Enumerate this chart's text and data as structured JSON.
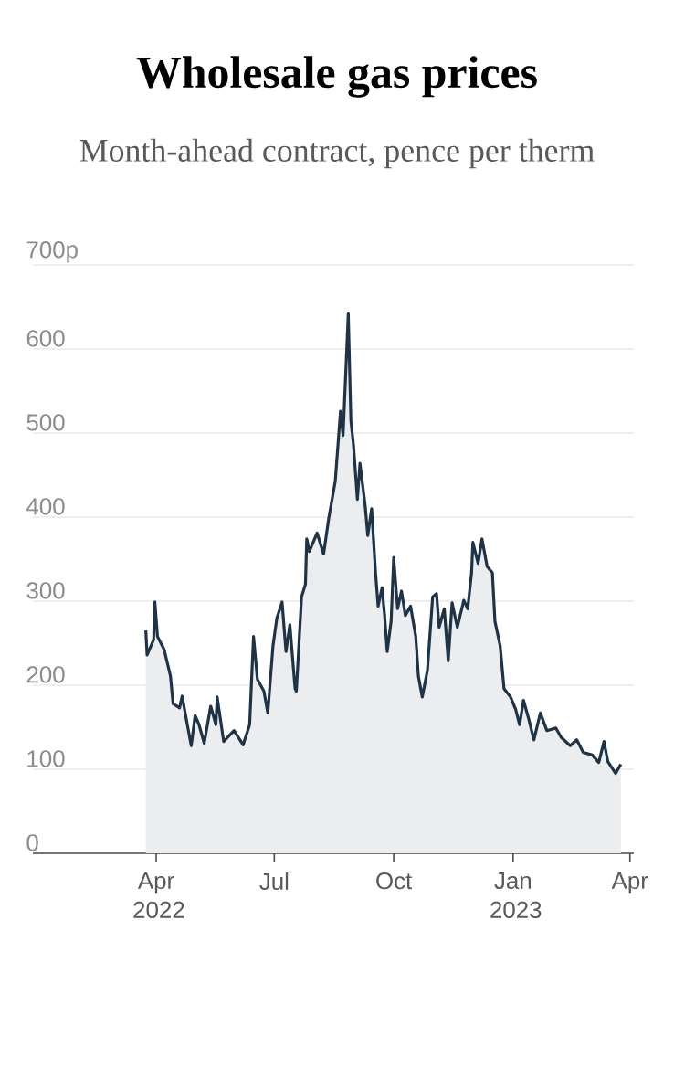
{
  "chart_data": {
    "type": "area",
    "title": "Wholesale gas prices",
    "subtitle": "Month-ahead contract, pence per therm",
    "x": [
      "2022-03-24",
      "2022-03-25",
      "2022-03-30",
      "2022-03-31",
      "2022-04-02",
      "2022-04-07",
      "2022-04-12",
      "2022-04-14",
      "2022-04-19",
      "2022-04-21",
      "2022-04-25",
      "2022-04-28",
      "2022-05-01",
      "2022-05-04",
      "2022-05-08",
      "2022-05-13",
      "2022-05-17",
      "2022-05-18",
      "2022-05-23",
      "2022-05-31",
      "2022-06-07",
      "2022-06-12",
      "2022-06-15",
      "2022-06-18",
      "2022-06-23",
      "2022-06-26",
      "2022-06-30",
      "2022-07-03",
      "2022-07-07",
      "2022-07-10",
      "2022-07-13",
      "2022-07-17",
      "2022-07-18",
      "2022-07-22",
      "2022-07-25",
      "2022-07-26",
      "2022-07-28",
      "2022-08-03",
      "2022-08-08",
      "2022-08-12",
      "2022-08-17",
      "2022-08-21",
      "2022-08-23",
      "2022-08-27",
      "2022-08-29",
      "2022-08-31",
      "2022-09-03",
      "2022-09-05",
      "2022-09-09",
      "2022-09-11",
      "2022-09-14",
      "2022-09-17",
      "2022-09-19",
      "2022-09-22",
      "2022-09-24",
      "2022-09-26",
      "2022-09-29",
      "2022-10-01",
      "2022-10-04",
      "2022-10-07",
      "2022-10-10",
      "2022-10-14",
      "2022-10-18",
      "2022-10-20",
      "2022-10-23",
      "2022-10-27",
      "2022-10-31",
      "2022-11-03",
      "2022-11-05",
      "2022-11-09",
      "2022-11-12",
      "2022-11-15",
      "2022-11-19",
      "2022-11-24",
      "2022-11-27",
      "2022-11-30",
      "2022-12-01",
      "2022-12-05",
      "2022-12-08",
      "2022-12-12",
      "2022-12-16",
      "2022-12-18",
      "2022-12-22",
      "2022-12-25",
      "2022-12-30",
      "2023-01-03",
      "2023-01-06",
      "2023-01-09",
      "2023-01-13",
      "2023-01-17",
      "2023-01-22",
      "2023-01-27",
      "2023-02-03",
      "2023-02-07",
      "2023-02-14",
      "2023-02-19",
      "2023-02-24",
      "2023-03-03",
      "2023-03-08",
      "2023-03-12",
      "2023-03-15",
      "2023-03-21",
      "2023-03-25"
    ],
    "values": [
      265,
      236,
      254,
      299,
      258,
      243,
      211,
      178,
      173,
      187,
      153,
      128,
      164,
      153,
      131,
      175,
      153,
      186,
      133,
      146,
      129,
      153,
      258,
      207,
      193,
      167,
      247,
      280,
      299,
      240,
      272,
      196,
      193,
      305,
      320,
      374,
      359,
      381,
      356,
      399,
      443,
      526,
      497,
      642,
      515,
      486,
      421,
      464,
      414,
      378,
      410,
      334,
      294,
      316,
      283,
      240,
      276,
      352,
      291,
      312,
      283,
      294,
      258,
      211,
      186,
      218,
      305,
      309,
      269,
      291,
      229,
      298,
      269,
      301,
      291,
      334,
      370,
      345,
      374,
      341,
      334,
      276,
      247,
      196,
      186,
      171,
      153,
      182,
      160,
      135,
      167,
      146,
      149,
      138,
      128,
      135,
      120,
      117,
      108,
      133,
      109,
      95,
      106
    ],
    "color": "#1f3347",
    "xlim": [
      "2021-12-27",
      "2023-04-04"
    ],
    "xticks": [
      {
        "value": "2022-04-01",
        "label": "Apr 2022"
      },
      {
        "value": "2022-07-01",
        "label": "Jul"
      },
      {
        "value": "2022-10-01",
        "label": "Oct"
      },
      {
        "value": "2023-01-01",
        "label": "Jan 2023"
      },
      {
        "value": "2023-04-01",
        "label": "Apr"
      }
    ],
    "ylim": [
      0,
      700
    ],
    "yticks": [
      0,
      100,
      200,
      300,
      400,
      500,
      {
        "value": 700,
        "label": "700p"
      },
      600
    ],
    "grid": "y"
  }
}
